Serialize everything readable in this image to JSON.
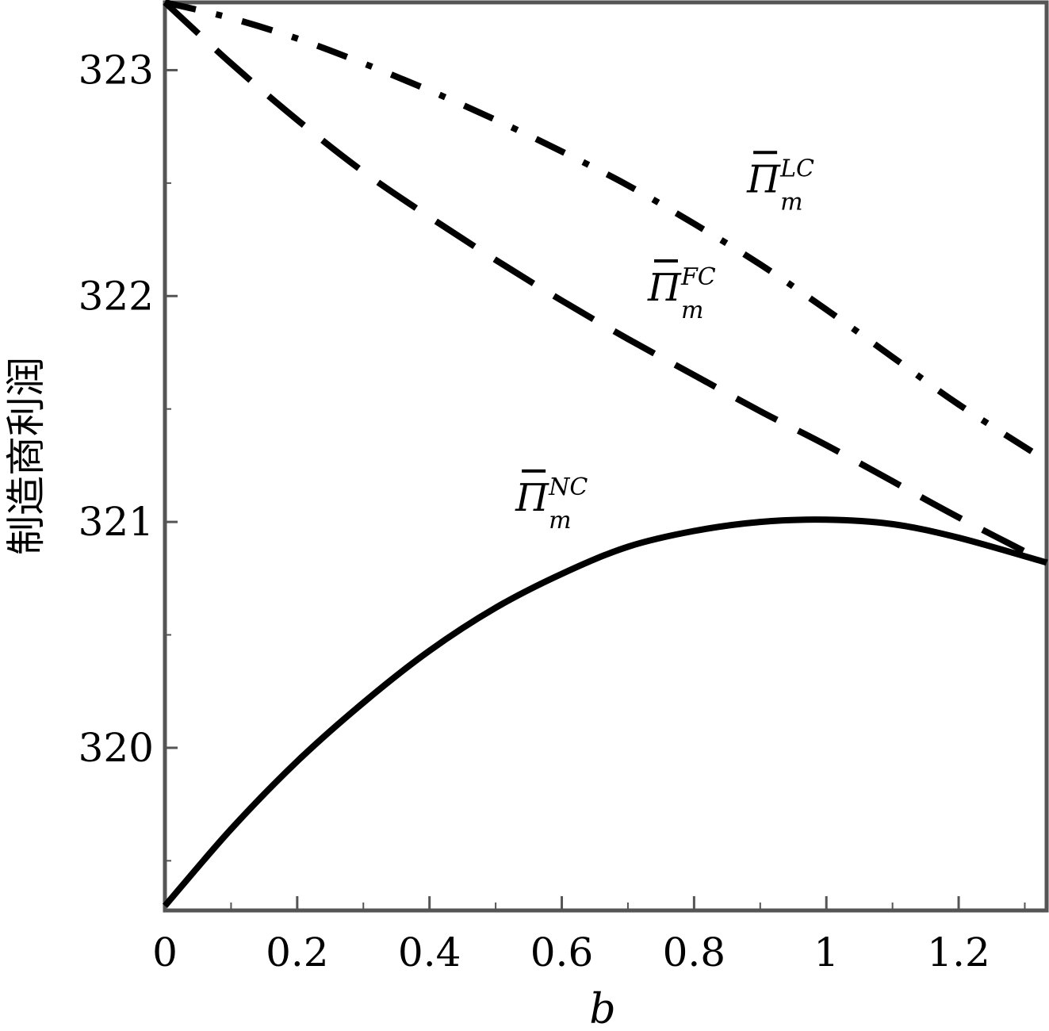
{
  "chart_data": {
    "type": "line",
    "title": "",
    "xlabel": "b",
    "ylabel": "制造商利润",
    "xlim": [
      0,
      1.333
    ],
    "ylim": [
      319.28,
      323.3
    ],
    "x_ticks": [
      0,
      0.2,
      0.4,
      0.6,
      0.8,
      1,
      1.2
    ],
    "x_tick_labels": [
      "0",
      "0.2",
      "0.4",
      "0.6",
      "0.8",
      "1",
      "1.2"
    ],
    "x_minor_step": 0.1,
    "y_ticks": [
      320,
      321,
      322,
      323
    ],
    "y_tick_labels": [
      "320",
      "321",
      "322",
      "323"
    ],
    "y_minor_step": 0.5,
    "grid": false,
    "legend": "none",
    "series": [
      {
        "name": "Π̄_m^LC",
        "style": "dashdot",
        "label": {
          "symbol": "Π",
          "superscript": "LC",
          "subscript": "m",
          "anchor": [
            0.88,
            322.46
          ]
        },
        "x": [
          0,
          0.1,
          0.2,
          0.3,
          0.4,
          0.5,
          0.6,
          0.7,
          0.8,
          0.9,
          1.0,
          1.1,
          1.2,
          1.333
        ],
        "y": [
          323.3,
          323.23,
          323.14,
          323.03,
          322.91,
          322.78,
          322.64,
          322.49,
          322.32,
          322.14,
          321.94,
          321.73,
          321.52,
          321.27
        ]
      },
      {
        "name": "Π̄_m^FC",
        "style": "dashed",
        "label": {
          "symbol": "Π",
          "superscript": "FC",
          "subscript": "m",
          "anchor": [
            0.73,
            321.98
          ]
        },
        "x": [
          0,
          0.1,
          0.2,
          0.3,
          0.4,
          0.5,
          0.6,
          0.7,
          0.8,
          0.9,
          1.0,
          1.1,
          1.2,
          1.333
        ],
        "y": [
          323.3,
          323.03,
          322.78,
          322.55,
          322.35,
          322.16,
          321.98,
          321.81,
          321.65,
          321.49,
          321.34,
          321.18,
          321.02,
          320.82
        ]
      },
      {
        "name": "Π̄_m^NC",
        "style": "solid",
        "label": {
          "symbol": "Π",
          "superscript": "NC",
          "subscript": "m",
          "anchor": [
            0.53,
            321.05
          ]
        },
        "x": [
          0,
          0.1,
          0.2,
          0.3,
          0.4,
          0.5,
          0.6,
          0.7,
          0.8,
          0.9,
          1.0,
          1.1,
          1.2,
          1.333
        ],
        "y": [
          319.3,
          319.64,
          319.94,
          320.2,
          320.43,
          320.62,
          320.77,
          320.89,
          320.96,
          321.0,
          321.01,
          320.99,
          320.93,
          320.82
        ]
      }
    ]
  }
}
